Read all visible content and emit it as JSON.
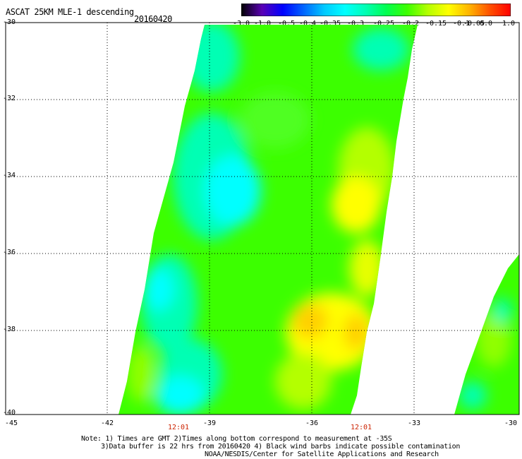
{
  "header": {
    "title": "ASCAT 25KM MLE-1 descending",
    "date": "20160420"
  },
  "colorbar": {
    "labels": [
      "-3.0",
      "-1.0",
      "-0.5",
      "-0.4",
      "-0.35",
      "-0.3",
      "-0.25",
      "-0.2",
      "-0.15",
      "-0.1",
      "-0.05",
      "0.0",
      "1.0"
    ],
    "colors": [
      "#000000",
      "#5a00b4",
      "#0000ff",
      "#0064ff",
      "#00c8ff",
      "#00ffff",
      "#00ffb4",
      "#00ff50",
      "#3cff00",
      "#b4ff00",
      "#ffff00",
      "#ffb400",
      "#ff5000",
      "#ff0000"
    ]
  },
  "axes": {
    "lon_labels": [
      "-45",
      "-42",
      "-39",
      "-36",
      "-33",
      "-30"
    ],
    "lat_labels": [
      "-30",
      "-32",
      "-34",
      "-36",
      "-38",
      "-40"
    ]
  },
  "time_labels": [
    "12:01",
    "12:01"
  ],
  "notes": {
    "line1": "Note: 1) Times are GMT 2)Times along bottom correspond to measurement at -35S",
    "line2": "3)Data buffer is 22 hrs from 20160420 4) Black wind barbs indicate possible contamination",
    "line3": "NOAA/NESDIS/Center for Satellite Applications and Research"
  }
}
